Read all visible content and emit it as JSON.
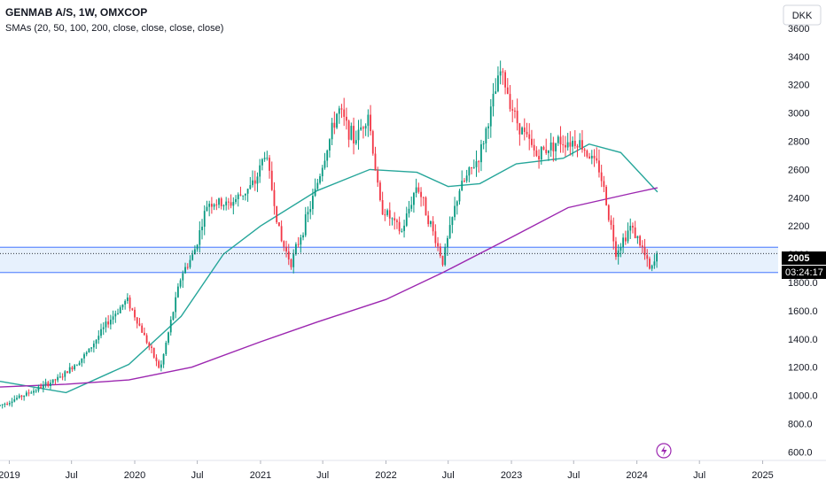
{
  "header": {
    "title": "GENMAB A/S, 1W, OMXCOP",
    "indicators": "SMAs (20, 50, 100, 200, close, close, close, close)"
  },
  "currency": "DKK",
  "price_label": "2005",
  "countdown": "03:24:17",
  "colors": {
    "up": "#089981",
    "down": "#f23645",
    "sma_short": "#26a69a",
    "sma_long": "#9c27b0",
    "zone_fill": "#e3effd",
    "zone_line": "#2962ff"
  },
  "chart_data": {
    "type": "candlestick",
    "interval": "1W",
    "y_ticks": [
      "600.0",
      "800.0",
      "1000.0",
      "1200.0",
      "1400.0",
      "1600.0",
      "1800.0",
      "2000",
      "2200",
      "2400",
      "2600",
      "2800",
      "3000",
      "3200",
      "3400",
      "3600"
    ],
    "x_ticks": [
      "2019",
      "Jul",
      "2020",
      "Jul",
      "2021",
      "Jul",
      "2022",
      "Jul",
      "2023",
      "Jul",
      "2024",
      "Jul",
      "2025"
    ],
    "ylim": [
      540,
      3800
    ],
    "xlim": [
      "2018-12-05",
      "2025-02-15"
    ],
    "last_price": 2005,
    "support_zone": [
      1870,
      2050
    ],
    "price_path": [
      [
        "2018-12-05",
        930
      ],
      [
        "2019-03-01",
        1020
      ],
      [
        "2019-06-01",
        1130
      ],
      [
        "2019-08-15",
        1300
      ],
      [
        "2019-10-15",
        1520
      ],
      [
        "2019-12-10",
        1680
      ],
      [
        "2020-03-15",
        1180
      ],
      [
        "2020-05-15",
        1850
      ],
      [
        "2020-06-20",
        2000
      ],
      [
        "2020-08-01",
        2370
      ],
      [
        "2020-10-01",
        2350
      ],
      [
        "2020-12-15",
        2500
      ],
      [
        "2021-01-15",
        2730
      ],
      [
        "2021-03-01",
        2100
      ],
      [
        "2021-04-01",
        1940
      ],
      [
        "2021-06-01",
        2380
      ],
      [
        "2021-08-15",
        3030
      ],
      [
        "2021-10-01",
        2800
      ],
      [
        "2021-11-10",
        3000
      ],
      [
        "2021-12-15",
        2350
      ],
      [
        "2022-02-15",
        2150
      ],
      [
        "2022-04-01",
        2500
      ],
      [
        "2022-06-15",
        1950
      ],
      [
        "2022-08-01",
        2450
      ],
      [
        "2022-10-01",
        2700
      ],
      [
        "2022-12-01",
        3300
      ],
      [
        "2023-01-15",
        2950
      ],
      [
        "2023-03-15",
        2700
      ],
      [
        "2023-05-15",
        2800
      ],
      [
        "2023-07-15",
        2800
      ],
      [
        "2023-09-15",
        2600
      ],
      [
        "2023-11-01",
        2020
      ],
      [
        "2023-12-15",
        2200
      ],
      [
        "2024-01-15",
        2050
      ],
      [
        "2024-02-10",
        1870
      ],
      [
        "2024-03-01",
        2005
      ]
    ],
    "series": [
      {
        "points": [
          [
            "2018-12-05",
            1100
          ],
          [
            "2019-06-15",
            1020
          ],
          [
            "2019-12-15",
            1220
          ],
          [
            "2020-05-15",
            1560
          ],
          [
            "2020-09-15",
            2000
          ],
          [
            "2021-01-01",
            2200
          ],
          [
            "2021-06-15",
            2450
          ],
          [
            "2021-11-15",
            2600
          ],
          [
            "2022-04-01",
            2580
          ],
          [
            "2022-07-01",
            2480
          ],
          [
            "2022-10-01",
            2500
          ],
          [
            "2023-01-15",
            2640
          ],
          [
            "2023-06-01",
            2680
          ],
          [
            "2023-08-15",
            2780
          ],
          [
            "2023-11-15",
            2720
          ],
          [
            "2024-03-01",
            2440
          ]
        ]
      },
      {
        "points": [
          [
            "2018-12-05",
            1060
          ],
          [
            "2019-06-15",
            1080
          ],
          [
            "2019-12-15",
            1110
          ],
          [
            "2020-06-15",
            1200
          ],
          [
            "2021-01-01",
            1380
          ],
          [
            "2021-06-15",
            1520
          ],
          [
            "2022-01-01",
            1680
          ],
          [
            "2022-06-15",
            1870
          ],
          [
            "2023-01-01",
            2120
          ],
          [
            "2023-06-15",
            2330
          ],
          [
            "2023-12-15",
            2430
          ],
          [
            "2024-03-01",
            2470
          ]
        ]
      }
    ]
  }
}
